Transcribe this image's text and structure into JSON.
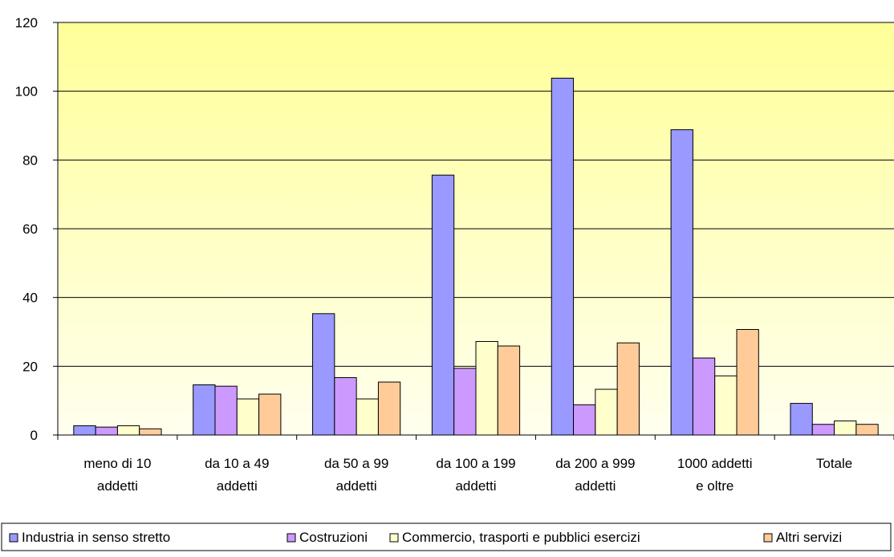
{
  "chart_data": {
    "type": "bar",
    "categories": [
      [
        "meno di 10",
        "addetti"
      ],
      [
        "da 10 a 49",
        "addetti"
      ],
      [
        "da 50 a 99",
        "addetti"
      ],
      [
        "da 100 a 199",
        "addetti"
      ],
      [
        "da 200 a 999",
        "addetti"
      ],
      [
        "1000 addetti",
        "e oltre"
      ],
      [
        "Totale"
      ]
    ],
    "series": [
      {
        "name": "Industria in senso stretto",
        "color": "#9999FF",
        "values": [
          2.7,
          14.6,
          35.3,
          75.6,
          103.8,
          88.8,
          9.2
        ]
      },
      {
        "name": "Costruzioni",
        "color": "#CC99FF",
        "values": [
          2.3,
          14.2,
          16.7,
          19.4,
          8.8,
          22.4,
          3.1
        ]
      },
      {
        "name": "Commercio, trasporti e pubblici esercizi",
        "color": "#FFFFCC",
        "values": [
          2.7,
          10.5,
          10.5,
          27.2,
          13.3,
          17.2,
          4.1
        ]
      },
      {
        "name": "Altri servizi",
        "color": "#FFCC99",
        "values": [
          1.8,
          11.9,
          15.4,
          25.9,
          26.8,
          30.7,
          3.1
        ]
      }
    ],
    "yticks": [
      0,
      20,
      40,
      60,
      80,
      100,
      120
    ],
    "ylim": [
      0,
      120
    ],
    "grid": true,
    "legend_position": "bottom",
    "plot_background": [
      "#FFFF99",
      "#FFFFEE"
    ]
  }
}
